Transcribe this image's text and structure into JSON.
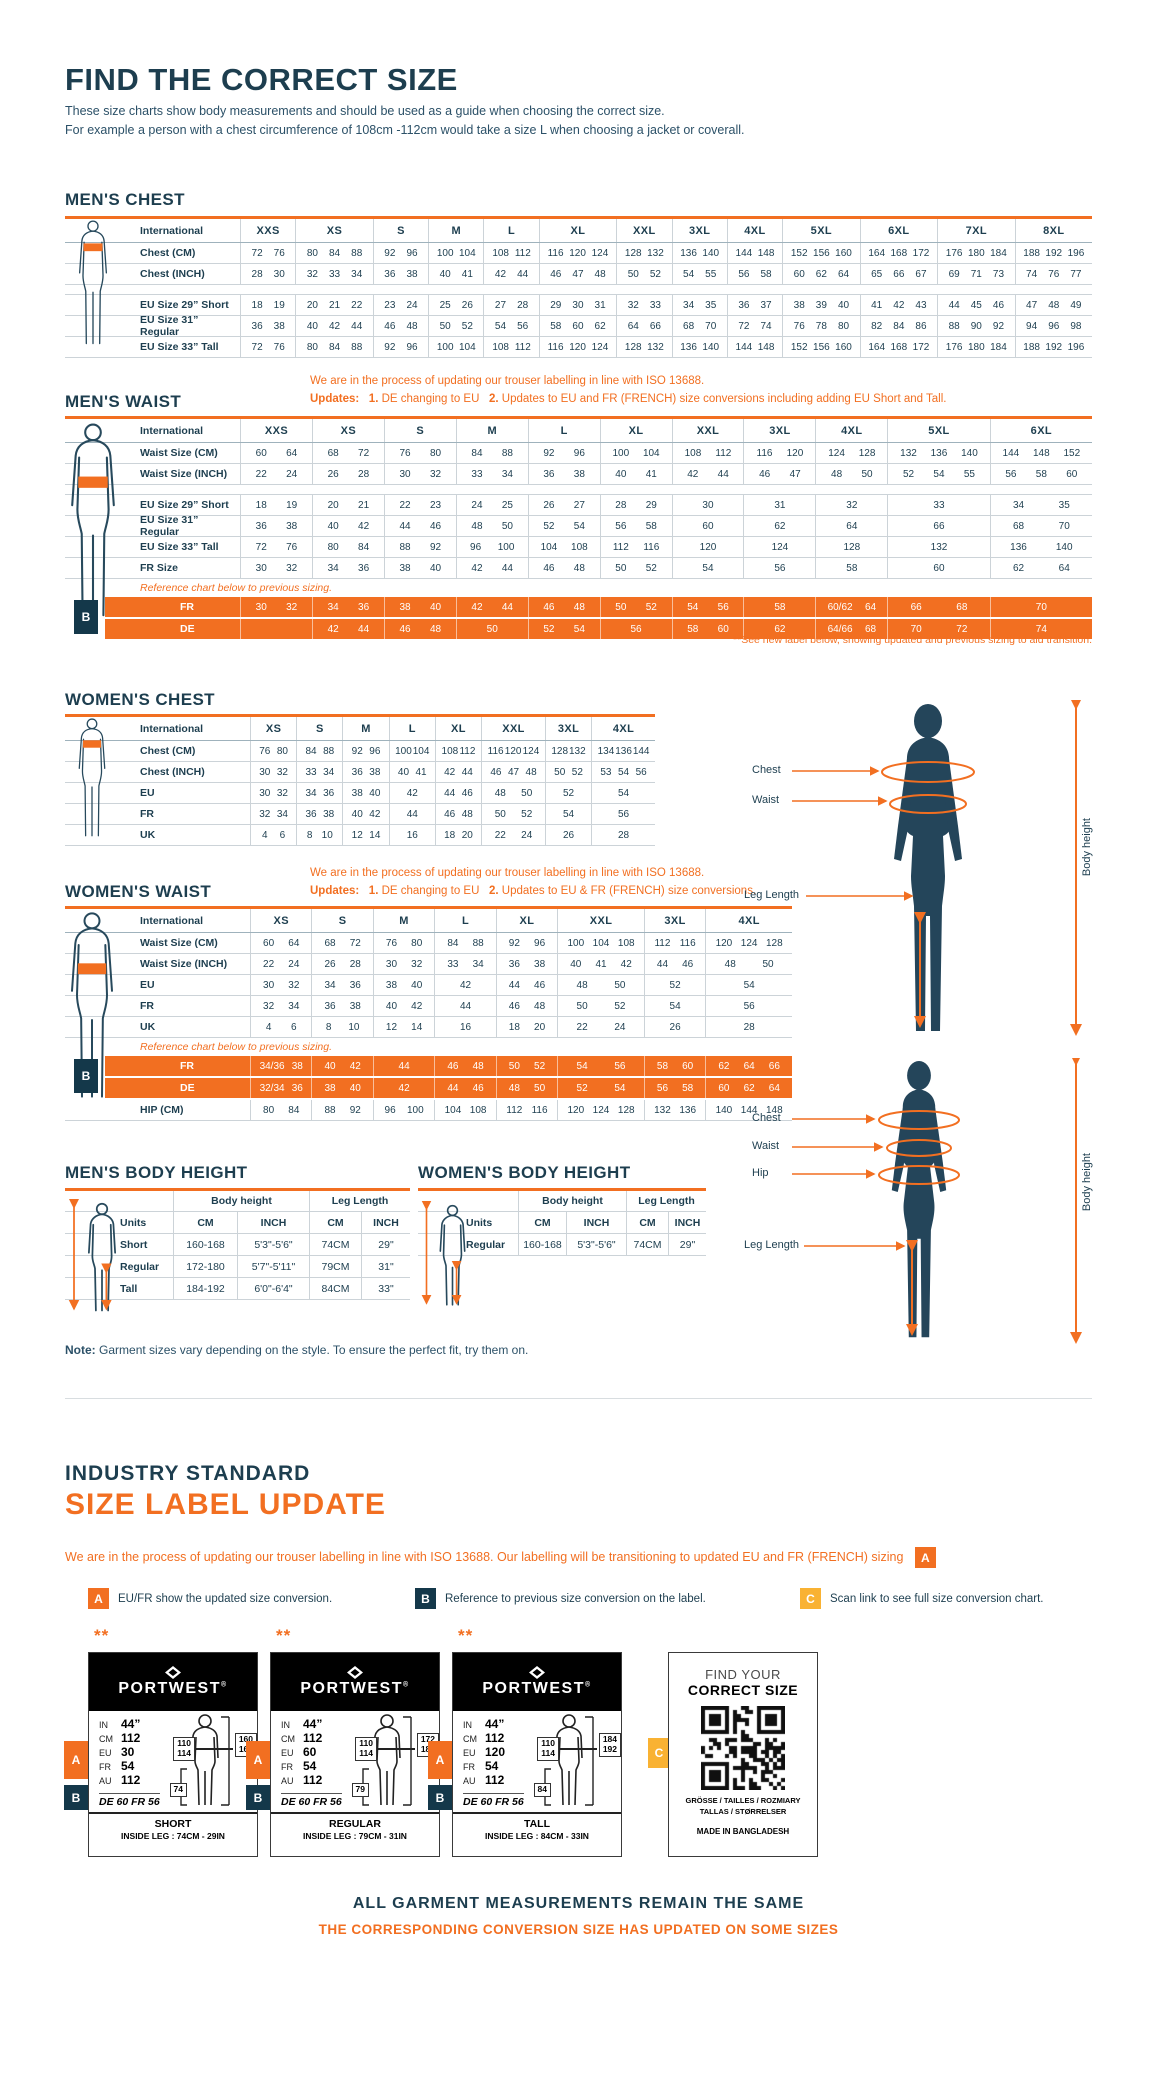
{
  "header": {
    "title": "FIND THE CORRECT SIZE",
    "intro1": "These size charts show body measurements and should be used as a guide when choosing the correct size.",
    "intro2": "For example a person with a chest circumference of 108cm -112cm would take a size L when choosing a jacket or coverall."
  },
  "mens_chest": {
    "heading": "MEN'S CHEST",
    "table": {
      "label_header": "International",
      "columns": [
        {
          "l": "XXS",
          "s": 2
        },
        {
          "l": "XS",
          "s": 3
        },
        {
          "l": "S",
          "s": 2
        },
        {
          "l": "M",
          "s": 2
        },
        {
          "l": "L",
          "s": 2
        },
        {
          "l": "XL",
          "s": 3
        },
        {
          "l": "XXL",
          "s": 2
        },
        {
          "l": "3XL",
          "s": 2
        },
        {
          "l": "4XL",
          "s": 2
        },
        {
          "l": "5XL",
          "s": 3
        },
        {
          "l": "6XL",
          "s": 3
        },
        {
          "l": "7XL",
          "s": 3
        },
        {
          "l": "8XL",
          "s": 3
        }
      ],
      "rows": [
        {
          "label": "Chest (CM)",
          "cells": [
            "72 76",
            "80 84 88",
            "92 96",
            "100 104",
            "108 112",
            "116 120 124",
            "128 132",
            "136 140",
            "144 148",
            "152 156 160",
            "164 168 172",
            "176 180 184",
            "188 192 196"
          ]
        },
        {
          "label": "Chest (INCH)",
          "cells": [
            "28 30",
            "32 33 34",
            "36 38",
            "40 41",
            "42 44",
            "46 47 48",
            "50 52",
            "54 55",
            "56 58",
            "60 62 64",
            "65 66 67",
            "69 71 73",
            "74 76 77"
          ]
        },
        {
          "type": "gap"
        },
        {
          "label": "EU Size 29” Short",
          "cells": [
            "18 19",
            "20 21 22",
            "23 24",
            "25 26",
            "27 28",
            "29 30 31",
            "32 33",
            "34 35",
            "36 37",
            "38 39 40",
            "41 42 43",
            "44 45 46",
            "47 48 49"
          ]
        },
        {
          "label": "EU Size 31” Regular",
          "cells": [
            "36 38",
            "40 42 44",
            "46 48",
            "50 52",
            "54 56",
            "58 60 62",
            "64 66",
            "68 70",
            "72 74",
            "76 78 80",
            "82 84 86",
            "88 90 92",
            "94 96 98"
          ]
        },
        {
          "label": "EU Size 33” Tall",
          "cells": [
            "72 76",
            "80 84 88",
            "92 96",
            "100 104",
            "108 112",
            "116 120 124",
            "128 132",
            "136 140",
            "144 148",
            "152 156 160",
            "164 168 172",
            "176 180 184",
            "188 192 196"
          ]
        }
      ]
    }
  },
  "mens_waist": {
    "heading": "MEN'S WAIST",
    "note1": "We are in the process of updating our trouser labelling in line with ISO 13688.",
    "updates_label": "Updates:",
    "u1n": "1.",
    "u1": "DE changing to EU",
    "u2n": "2.",
    "u2": "Updates to EU and FR (FRENCH) size conversions including adding EU Short and Tall.",
    "footnote": "**See new label below, showing updated and previous sizing to aid transition.",
    "table": {
      "label_header": "International",
      "columns": [
        {
          "l": "XXS",
          "s": 2
        },
        {
          "l": "XS",
          "s": 2
        },
        {
          "l": "S",
          "s": 2
        },
        {
          "l": "M",
          "s": 2
        },
        {
          "l": "L",
          "s": 2
        },
        {
          "l": "XL",
          "s": 2
        },
        {
          "l": "XXL",
          "s": 2
        },
        {
          "l": "3XL",
          "s": 2
        },
        {
          "l": "4XL",
          "s": 2
        },
        {
          "l": "5XL",
          "s": 3
        },
        {
          "l": "6XL",
          "s": 3
        }
      ],
      "rows": [
        {
          "label": "Waist Size (CM)",
          "cells": [
            "60 64",
            "68 72",
            "76 80",
            "84 88",
            "92 96",
            "100 104",
            "108 112",
            "116 120",
            "124 128",
            "132 136 140",
            "144 148 152"
          ]
        },
        {
          "label": "Waist Size (INCH)",
          "cells": [
            "22 24",
            "26 28",
            "30 32",
            "33 34",
            "36 38",
            "40 41",
            "42 44",
            "46 47",
            "48 50",
            "52 54 55",
            "56 58 60"
          ]
        },
        {
          "type": "gap"
        },
        {
          "label": "EU Size 29” Short",
          "cells": [
            "18 19",
            "20 21",
            "22 23",
            "24 25",
            "26 27",
            "28 29",
            "30",
            "31",
            "32",
            "33",
            "34 35"
          ]
        },
        {
          "label": "EU Size 31” Regular",
          "cells": [
            "36 38",
            "40 42",
            "44 46",
            "48 50",
            "52 54",
            "56 58",
            "60",
            "62",
            "64",
            "66",
            "68 70"
          ]
        },
        {
          "label": "EU Size 33” Tall",
          "cells": [
            "72 76",
            "80 84",
            "88 92",
            "96 100",
            "104 108",
            "112 116",
            "120",
            "124",
            "128",
            "132",
            "136 140"
          ]
        },
        {
          "label": "FR Size",
          "cells": [
            "30 32",
            "34 36",
            "38 40",
            "42 44",
            "46 48",
            "50 52",
            "54",
            "56",
            "58",
            "60",
            "62 64"
          ]
        },
        {
          "type": "note",
          "text": "Reference chart below to previous sizing."
        },
        {
          "type": "orange",
          "badge": "B",
          "label": "FR",
          "cells": [
            "30 32",
            "34 36",
            "38 40",
            "42 44",
            "46 48",
            "50 52",
            "54 56",
            "58",
            "60/62 64",
            "66 68",
            "70"
          ]
        },
        {
          "type": "orange",
          "label": "DE",
          "cells": [
            "",
            "42 44",
            "46 48",
            "50",
            "52 54",
            "56",
            "58 60",
            "62",
            "64/66 68",
            "70 72",
            "74"
          ]
        }
      ]
    }
  },
  "womens_chest": {
    "heading": "WOMEN'S CHEST",
    "table": {
      "label_header": "International",
      "columns": [
        {
          "l": "XS",
          "s": 2
        },
        {
          "l": "S",
          "s": 2
        },
        {
          "l": "M",
          "s": 2
        },
        {
          "l": "L",
          "s": 2
        },
        {
          "l": "XL",
          "s": 2
        },
        {
          "l": "XXL",
          "s": 3
        },
        {
          "l": "3XL",
          "s": 2
        },
        {
          "l": "4XL",
          "s": 3
        }
      ],
      "rows": [
        {
          "label": "Chest (CM)",
          "cells": [
            "76 80",
            "84 88",
            "92 96",
            "100 104",
            "108 112",
            "116 120 124",
            "128 132",
            "134 136 144"
          ]
        },
        {
          "label": "Chest (INCH)",
          "cells": [
            "30 32",
            "33 34",
            "36 38",
            "40 41",
            "42 44",
            "46 47 48",
            "50 52",
            "53 54 56"
          ]
        },
        {
          "label": "EU",
          "cells": [
            "30 32",
            "34 36",
            "38 40",
            "42",
            "44 46",
            "48 50",
            "52",
            "54"
          ]
        },
        {
          "label": "FR",
          "cells": [
            "32 34",
            "36 38",
            "40 42",
            "44",
            "46 48",
            "50 52",
            "54",
            "56"
          ]
        },
        {
          "label": "UK",
          "cells": [
            "4 6",
            "8 10",
            "12 14",
            "16",
            "18 20",
            "22 24",
            "26",
            "28"
          ]
        }
      ]
    }
  },
  "womens_waist": {
    "heading": "WOMEN'S WAIST",
    "note1": "We are in the process of updating our trouser labelling in line with ISO 13688.",
    "updates_label": "Updates:",
    "u1n": "1.",
    "u1": "DE changing to EU",
    "u2n": "2.",
    "u2": "Updates to EU & FR (FRENCH) size conversions.",
    "table": {
      "label_header": "International",
      "columns": [
        {
          "l": "XS",
          "s": 2
        },
        {
          "l": "S",
          "s": 2
        },
        {
          "l": "M",
          "s": 2
        },
        {
          "l": "L",
          "s": 2
        },
        {
          "l": "XL",
          "s": 2
        },
        {
          "l": "XXL",
          "s": 3
        },
        {
          "l": "3XL",
          "s": 2
        },
        {
          "l": "4XL",
          "s": 3
        }
      ],
      "rows": [
        {
          "label": "Waist Size (CM)",
          "cells": [
            "60 64",
            "68 72",
            "76 80",
            "84 88",
            "92 96",
            "100 104 108",
            "112 116",
            "120 124 128"
          ]
        },
        {
          "label": "Waist Size (INCH)",
          "cells": [
            "22 24",
            "26 28",
            "30 32",
            "33 34",
            "36 38",
            "40 41 42",
            "44 46",
            "48 50"
          ]
        },
        {
          "label": "EU",
          "cells": [
            "30 32",
            "34 36",
            "38 40",
            "42",
            "44 46",
            "48 50",
            "52",
            "54"
          ]
        },
        {
          "label": "FR",
          "cells": [
            "32 34",
            "36 38",
            "40 42",
            "44",
            "46 48",
            "50 52",
            "54",
            "56"
          ]
        },
        {
          "label": "UK",
          "cells": [
            "4 6",
            "8 10",
            "12 14",
            "16",
            "18 20",
            "22 24",
            "26",
            "28"
          ]
        },
        {
          "type": "note",
          "text": "Reference chart below to previous sizing."
        },
        {
          "type": "orange",
          "badge": "B",
          "label": "FR",
          "cells": [
            "34/36 38",
            "40 42",
            "44",
            "46 48",
            "50 52",
            "54 56",
            "58 60",
            "62 64 66"
          ]
        },
        {
          "type": "orange",
          "label": "DE",
          "cells": [
            "32/34 36",
            "38 40",
            "42",
            "44 46",
            "48 50",
            "52 54",
            "56 58",
            "60 62 64"
          ]
        },
        {
          "label": "HIP (CM)",
          "cells": [
            "80 84",
            "88 92",
            "96 100",
            "104 108",
            "112 116",
            "120 124 128",
            "132 136",
            "140 144 148"
          ]
        }
      ]
    }
  },
  "mens_bh": {
    "heading": "MEN'S BODY HEIGHT",
    "group1": "Body height",
    "group2": "Leg Length",
    "units_label": "Units",
    "cols": [
      "CM",
      "INCH",
      "CM",
      "INCH"
    ],
    "rows": [
      {
        "label": "Short",
        "bh_cm": "160-168",
        "bh_in": "5'3\"-5'6\"",
        "leg_cm": "74CM",
        "leg_in": "29\""
      },
      {
        "label": "Regular",
        "bh_cm": "172-180",
        "bh_in": "5'7\"-5'11\"",
        "leg_cm": "79CM",
        "leg_in": "31\""
      },
      {
        "label": "Tall",
        "bh_cm": "184-192",
        "bh_in": "6'0\"-6'4\"",
        "leg_cm": "84CM",
        "leg_in": "33\""
      }
    ]
  },
  "womens_bh": {
    "heading": "WOMEN'S BODY HEIGHT",
    "group1": "Body height",
    "group2": "Leg Length",
    "units_label": "Units",
    "cols": [
      "CM",
      "INCH",
      "CM",
      "INCH"
    ],
    "rows": [
      {
        "label": "Regular",
        "bh_cm": "160-168",
        "bh_in": "5'3\"-5'6\"",
        "leg_cm": "74CM",
        "leg_in": "29\""
      }
    ]
  },
  "note": {
    "label": "Note:",
    "text": "Garment sizes vary depending on the style. To ensure the perfect fit, try them on."
  },
  "diagram_male": {
    "chest": "Chest",
    "waist": "Waist",
    "leg": "Leg Length",
    "height": "Body height"
  },
  "diagram_female": {
    "chest": "Chest",
    "waist": "Waist",
    "hip": "Hip",
    "leg": "Leg Length",
    "height": "Body height"
  },
  "industry": {
    "line1": "INDUSTRY STANDARD",
    "line2": "SIZE LABEL UPDATE",
    "paragraph": "We are in the process of updating our trouser labelling in line with ISO 13688. Our labelling will be transitioning to updated EU and FR (FRENCH) sizing",
    "badge_a": "A",
    "legend": [
      {
        "badge": "A",
        "text": "EU/FR show the updated size conversion."
      },
      {
        "badge": "B",
        "text": "Reference to previous size conversion on the label."
      },
      {
        "badge": "C",
        "text": "Scan link to see full size conversion chart."
      }
    ]
  },
  "cards": [
    {
      "stars": "**",
      "brand": "PORTWEST",
      "reg": "®",
      "meas": [
        {
          "k": "IN",
          "v": "44”"
        },
        {
          "k": "CM",
          "v": "112"
        },
        {
          "k": "EU",
          "v": "30"
        },
        {
          "k": "FR",
          "v": "54"
        },
        {
          "k": "AU",
          "v": "112"
        }
      ],
      "prev": "DE 60 FR 56",
      "waist1": "110",
      "waist2": "114",
      "h1": "160",
      "h2": "168",
      "leg": "74",
      "name": "SHORT",
      "inside_leg": "INSIDE LEG : 74CM - 29IN",
      "badge_a": "A",
      "badge_b": "B"
    },
    {
      "stars": "**",
      "brand": "PORTWEST",
      "reg": "®",
      "meas": [
        {
          "k": "IN",
          "v": "44”"
        },
        {
          "k": "CM",
          "v": "112"
        },
        {
          "k": "EU",
          "v": "60"
        },
        {
          "k": "FR",
          "v": "54"
        },
        {
          "k": "AU",
          "v": "112"
        }
      ],
      "prev": "DE 60 FR 56",
      "waist1": "110",
      "waist2": "114",
      "h1": "172",
      "h2": "180",
      "leg": "79",
      "name": "REGULAR",
      "inside_leg": "INSIDE LEG : 79CM - 31IN",
      "badge_a": "A",
      "badge_b": "B"
    },
    {
      "stars": "**",
      "brand": "PORTWEST",
      "reg": "®",
      "meas": [
        {
          "k": "IN",
          "v": "44”"
        },
        {
          "k": "CM",
          "v": "112"
        },
        {
          "k": "EU",
          "v": "120"
        },
        {
          "k": "FR",
          "v": "54"
        },
        {
          "k": "AU",
          "v": "112"
        }
      ],
      "prev": "DE 60 FR 56",
      "waist1": "110",
      "waist2": "114",
      "h1": "184",
      "h2": "192",
      "leg": "84",
      "name": "TALL",
      "inside_leg": "INSIDE LEG : 84CM - 33IN",
      "badge_a": "A",
      "badge_b": "B"
    }
  ],
  "qr_panel": {
    "find1": "FIND YOUR",
    "find2": "CORRECT SIZE",
    "langs1": "GRÖSSE / TAILLES / ROZMIARY",
    "langs2": "TALLAS / STØRRELSER",
    "made": "MADE IN BANGLADESH",
    "badge_c": "C"
  },
  "footer": {
    "line1": "ALL GARMENT MEASUREMENTS REMAIN THE SAME",
    "line2": "THE CORRESPONDING CONVERSION SIZE HAS UPDATED ON SOME SIZES"
  },
  "colors": {
    "navy": "#1d3e4f",
    "orange": "#f26f21",
    "amber": "#f9b233"
  }
}
